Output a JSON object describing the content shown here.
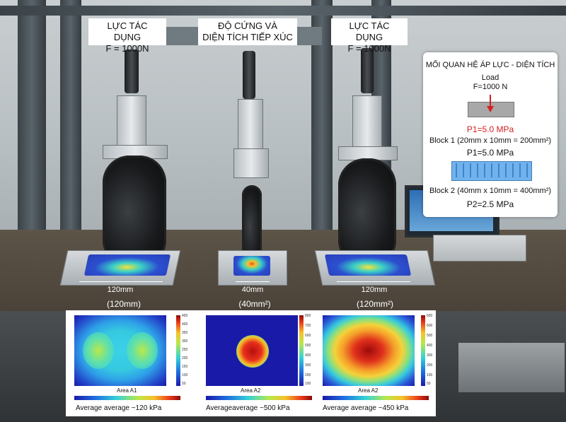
{
  "callouts": {
    "left": {
      "line1": "LỰC TÁC DỤNG",
      "line2": "F = 1000N"
    },
    "center": {
      "line1": "ĐỘ CỨNG VÀ",
      "line2": "DIỆN TÍCH TIẾP XÚC"
    },
    "right": {
      "line1": "LỰC TÁC DỤNG",
      "line2": "F = 1000N"
    }
  },
  "dimensions": {
    "left": "120mm",
    "center": "40mm",
    "right": "120mm"
  },
  "area_captions": {
    "left": "(120mm)",
    "center": "(40mm²)",
    "right": "(120mm²)"
  },
  "panel": {
    "title": "MỐI QUAN HỆ ÁP LỰC - DIỆN TÍCH",
    "load_label": "Load",
    "load_value": "F=1000 N",
    "p1_red": "P1=5.0 MPa",
    "block1": "Block 1 (20mm x 10mm = 200mm²)",
    "p1": "P1=5.0 MPa",
    "block2": "Block 2 (40mm x 10mm = 400mm²)",
    "p2": "P2=2.5 MPa",
    "colors": {
      "red": "#d42020",
      "block_blue": "#6fb3ee",
      "block_gray": "#a8a8a8"
    }
  },
  "heatmaps": [
    {
      "area": "Area A1",
      "average": "Average average ~120 kPa",
      "ticks": [
        "450",
        "400",
        "350",
        "300",
        "250",
        "200",
        "150",
        "100",
        "50"
      ]
    },
    {
      "area": "Area A2",
      "average": "Averageaverage ~500 kPa",
      "ticks": [
        "800",
        "700",
        "600",
        "500",
        "400",
        "300",
        "200",
        "100"
      ]
    },
    {
      "area": "Area A2",
      "average": "Average average ~450 kPa",
      "ticks": [
        "650",
        "600",
        "500",
        "400",
        "300",
        "200",
        "100",
        "50"
      ]
    }
  ]
}
